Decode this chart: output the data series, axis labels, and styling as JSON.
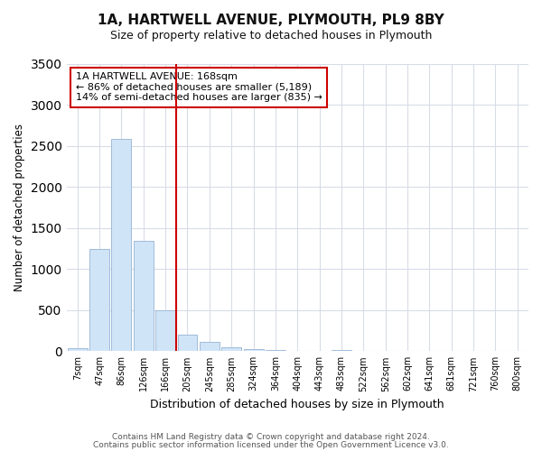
{
  "title": "1A, HARTWELL AVENUE, PLYMOUTH, PL9 8BY",
  "subtitle": "Size of property relative to detached houses in Plymouth",
  "xlabel": "Distribution of detached houses by size in Plymouth",
  "ylabel": "Number of detached properties",
  "bar_labels": [
    "7sqm",
    "47sqm",
    "86sqm",
    "126sqm",
    "166sqm",
    "205sqm",
    "245sqm",
    "285sqm",
    "324sqm",
    "364sqm",
    "404sqm",
    "443sqm",
    "483sqm",
    "522sqm",
    "562sqm",
    "602sqm",
    "641sqm",
    "681sqm",
    "721sqm",
    "760sqm",
    "800sqm"
  ],
  "bar_values": [
    40,
    1240,
    2580,
    1340,
    500,
    200,
    110,
    45,
    20,
    10,
    8,
    5,
    15,
    0,
    0,
    0,
    0,
    0,
    0,
    0,
    0
  ],
  "bar_color": "#d0e4f7",
  "bar_edgecolor": "#a0bcd8",
  "vline_color": "#cc0000",
  "annotation_text": "1A HARTWELL AVENUE: 168sqm\n← 86% of detached houses are smaller (5,189)\n14% of semi-detached houses are larger (835) →",
  "annotation_box_facecolor": "#ffffff",
  "annotation_box_edgecolor": "#cc0000",
  "ylim": [
    0,
    3500
  ],
  "fig_background": "#ffffff",
  "axes_background": "#ffffff",
  "grid_color": "#d8dce8",
  "footer_line1": "Contains HM Land Registry data © Crown copyright and database right 2024.",
  "footer_line2": "Contains public sector information licensed under the Open Government Licence v3.0.",
  "title_fontsize": 11,
  "subtitle_fontsize": 9
}
